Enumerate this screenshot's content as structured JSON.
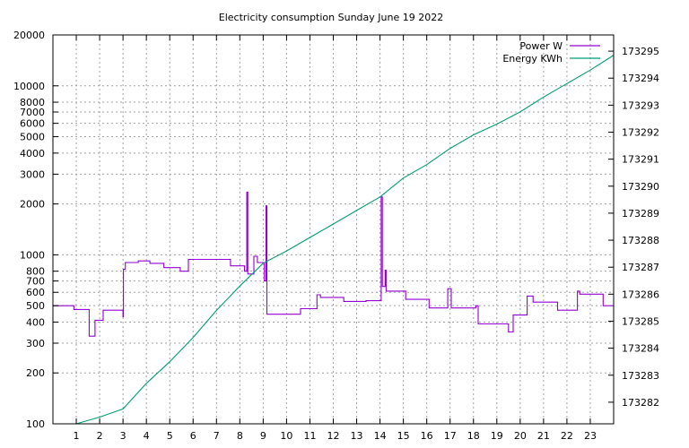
{
  "chart_data": {
    "type": "line",
    "title": "Electricity consumption Sunday June 19 2022",
    "xlabel": "",
    "ylabel": "",
    "grid": true,
    "legend_position": "top-right",
    "x_range": [
      0,
      24
    ],
    "x_ticks": [
      1,
      2,
      3,
      4,
      5,
      6,
      7,
      8,
      9,
      10,
      11,
      12,
      13,
      14,
      15,
      16,
      17,
      18,
      19,
      20,
      21,
      22,
      23
    ],
    "y_scale": "log",
    "y_range": [
      100,
      20000
    ],
    "y_ticks": [
      100,
      200,
      300,
      400,
      500,
      600,
      700,
      800,
      1000,
      2000,
      3000,
      4000,
      5000,
      6000,
      7000,
      8000,
      10000,
      20000
    ],
    "y2_range": [
      173281.2,
      173295.6
    ],
    "y2_ticks": [
      173282,
      173283,
      173284,
      173285,
      173286,
      173287,
      173288,
      173289,
      173290,
      173291,
      173292,
      173293,
      173294,
      173295
    ],
    "series": [
      {
        "name": "Power W",
        "color": "#9400d3",
        "axis": "left",
        "style": "step",
        "points": [
          [
            0,
            500
          ],
          [
            0.9,
            500
          ],
          [
            0.9,
            475
          ],
          [
            1.55,
            475
          ],
          [
            1.55,
            330
          ],
          [
            1.8,
            330
          ],
          [
            1.8,
            410
          ],
          [
            2.15,
            410
          ],
          [
            2.15,
            470
          ],
          [
            3.0,
            470
          ],
          [
            3.0,
            430
          ],
          [
            3.02,
            430
          ],
          [
            3.02,
            820
          ],
          [
            3.1,
            820
          ],
          [
            3.1,
            900
          ],
          [
            3.65,
            900
          ],
          [
            3.65,
            920
          ],
          [
            4.15,
            920
          ],
          [
            4.15,
            890
          ],
          [
            4.75,
            890
          ],
          [
            4.75,
            840
          ],
          [
            5.45,
            840
          ],
          [
            5.45,
            800
          ],
          [
            5.8,
            800
          ],
          [
            5.8,
            940
          ],
          [
            7.6,
            940
          ],
          [
            7.6,
            860
          ],
          [
            8.2,
            860
          ],
          [
            8.2,
            800
          ],
          [
            8.3,
            800
          ],
          [
            8.3,
            2350
          ],
          [
            8.34,
            2350
          ],
          [
            8.34,
            770
          ],
          [
            8.6,
            770
          ],
          [
            8.6,
            980
          ],
          [
            8.75,
            980
          ],
          [
            8.75,
            900
          ],
          [
            9.05,
            900
          ],
          [
            9.05,
            700
          ],
          [
            9.12,
            700
          ],
          [
            9.12,
            1950
          ],
          [
            9.16,
            1950
          ],
          [
            9.16,
            445
          ],
          [
            10.6,
            445
          ],
          [
            10.6,
            480
          ],
          [
            11.3,
            480
          ],
          [
            11.3,
            580
          ],
          [
            11.45,
            580
          ],
          [
            11.45,
            560
          ],
          [
            12.45,
            560
          ],
          [
            12.45,
            530
          ],
          [
            13.4,
            530
          ],
          [
            13.4,
            535
          ],
          [
            14.05,
            535
          ],
          [
            14.05,
            2200
          ],
          [
            14.1,
            2200
          ],
          [
            14.1,
            650
          ],
          [
            14.22,
            650
          ],
          [
            14.22,
            810
          ],
          [
            14.26,
            810
          ],
          [
            14.26,
            610
          ],
          [
            15.1,
            610
          ],
          [
            15.1,
            545
          ],
          [
            16.1,
            545
          ],
          [
            16.1,
            485
          ],
          [
            16.9,
            485
          ],
          [
            16.9,
            630
          ],
          [
            17.05,
            630
          ],
          [
            17.05,
            485
          ],
          [
            18.1,
            485
          ],
          [
            18.1,
            500
          ],
          [
            18.2,
            500
          ],
          [
            18.2,
            390
          ],
          [
            19.5,
            390
          ],
          [
            19.5,
            350
          ],
          [
            19.7,
            350
          ],
          [
            19.7,
            440
          ],
          [
            20.3,
            440
          ],
          [
            20.3,
            570
          ],
          [
            20.55,
            570
          ],
          [
            20.55,
            525
          ],
          [
            21.6,
            525
          ],
          [
            21.6,
            470
          ],
          [
            22.45,
            470
          ],
          [
            22.45,
            610
          ],
          [
            22.55,
            610
          ],
          [
            22.55,
            585
          ],
          [
            23.55,
            585
          ],
          [
            23.55,
            500
          ],
          [
            24,
            500
          ]
        ]
      },
      {
        "name": "Energy KWh",
        "color": "#009e73",
        "axis": "right",
        "style": "line",
        "points": [
          [
            1.0,
            173281.2
          ],
          [
            2.0,
            173281.45
          ],
          [
            3.0,
            173281.75
          ],
          [
            4.0,
            173282.7
          ],
          [
            5.0,
            173283.5
          ],
          [
            6.0,
            173284.4
          ],
          [
            7.0,
            173285.4
          ],
          [
            8.0,
            173286.3
          ],
          [
            9.0,
            173287.15
          ],
          [
            10.0,
            173287.6
          ],
          [
            11.0,
            173288.1
          ],
          [
            12.0,
            173288.6
          ],
          [
            13.0,
            173289.1
          ],
          [
            14.0,
            173289.6
          ],
          [
            15.0,
            173290.3
          ],
          [
            16.0,
            173290.8
          ],
          [
            17.0,
            173291.4
          ],
          [
            18.0,
            173291.9
          ],
          [
            19.0,
            173292.3
          ],
          [
            20.0,
            173292.75
          ],
          [
            21.0,
            173293.3
          ],
          [
            22.0,
            173293.8
          ],
          [
            23.0,
            173294.3
          ],
          [
            24.0,
            173294.85
          ]
        ]
      }
    ]
  }
}
